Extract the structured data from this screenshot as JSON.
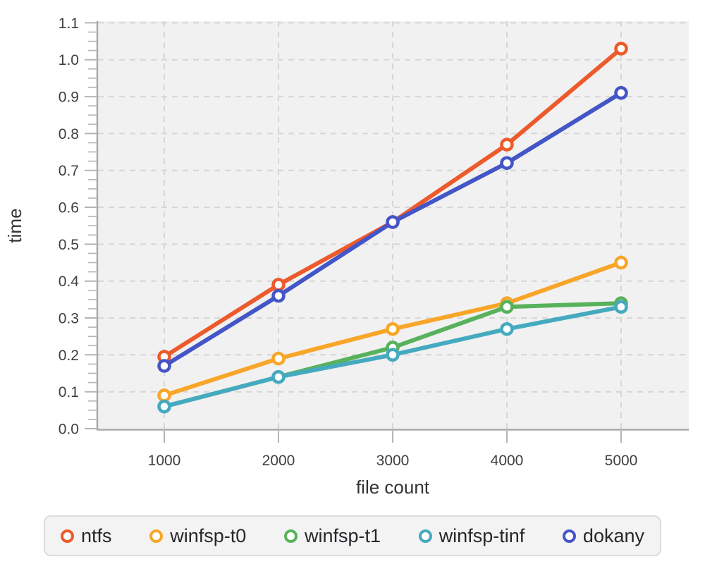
{
  "figure_style": {
    "background": "#ffffff",
    "plot_background": "#f1f1f1",
    "grid_color": "#d6d6d6",
    "axis_line_color": "#ababab",
    "tick_color": "#b5b5b5",
    "tick_label_color": "#3e3e3e",
    "axis_title_color": "#333333",
    "legend_background": "#f3f3f4",
    "legend_border": "#dcdcdc",
    "legend_text_color": "#26282b"
  },
  "chart_data": {
    "type": "line",
    "title": "",
    "xlabel": "file count",
    "ylabel": "time",
    "x": [
      1000,
      2000,
      3000,
      4000,
      5000
    ],
    "x_tick_labels": [
      "1000",
      "2000",
      "3000",
      "4000",
      "5000"
    ],
    "y_tick_labels": [
      "0.0",
      "0.1",
      "0.2",
      "0.3",
      "0.4",
      "0.5",
      "0.6",
      "0.7",
      "0.8",
      "0.9",
      "1.0",
      "1.1"
    ],
    "ylim": [
      0,
      1.1
    ],
    "y_major_step": 0.1,
    "y_minor_step": 0.025,
    "grid": true,
    "legend_position": "bottom",
    "marker": "open-circle",
    "series": [
      {
        "name": "ntfs",
        "color": "#ed5a2b",
        "values": [
          0.195,
          0.39,
          0.56,
          0.77,
          1.03
        ]
      },
      {
        "name": "winfsp-t0",
        "color": "#f8a629",
        "values": [
          0.09,
          0.19,
          0.27,
          0.34,
          0.45
        ]
      },
      {
        "name": "winfsp-t1",
        "color": "#58b25c",
        "values": [
          0.06,
          0.14,
          0.22,
          0.33,
          0.34
        ]
      },
      {
        "name": "winfsp-tinf",
        "color": "#45aac0",
        "values": [
          0.06,
          0.14,
          0.2,
          0.27,
          0.33
        ]
      },
      {
        "name": "dokany",
        "color": "#4355c7",
        "values": [
          0.17,
          0.36,
          0.56,
          0.72,
          0.91
        ]
      }
    ]
  }
}
